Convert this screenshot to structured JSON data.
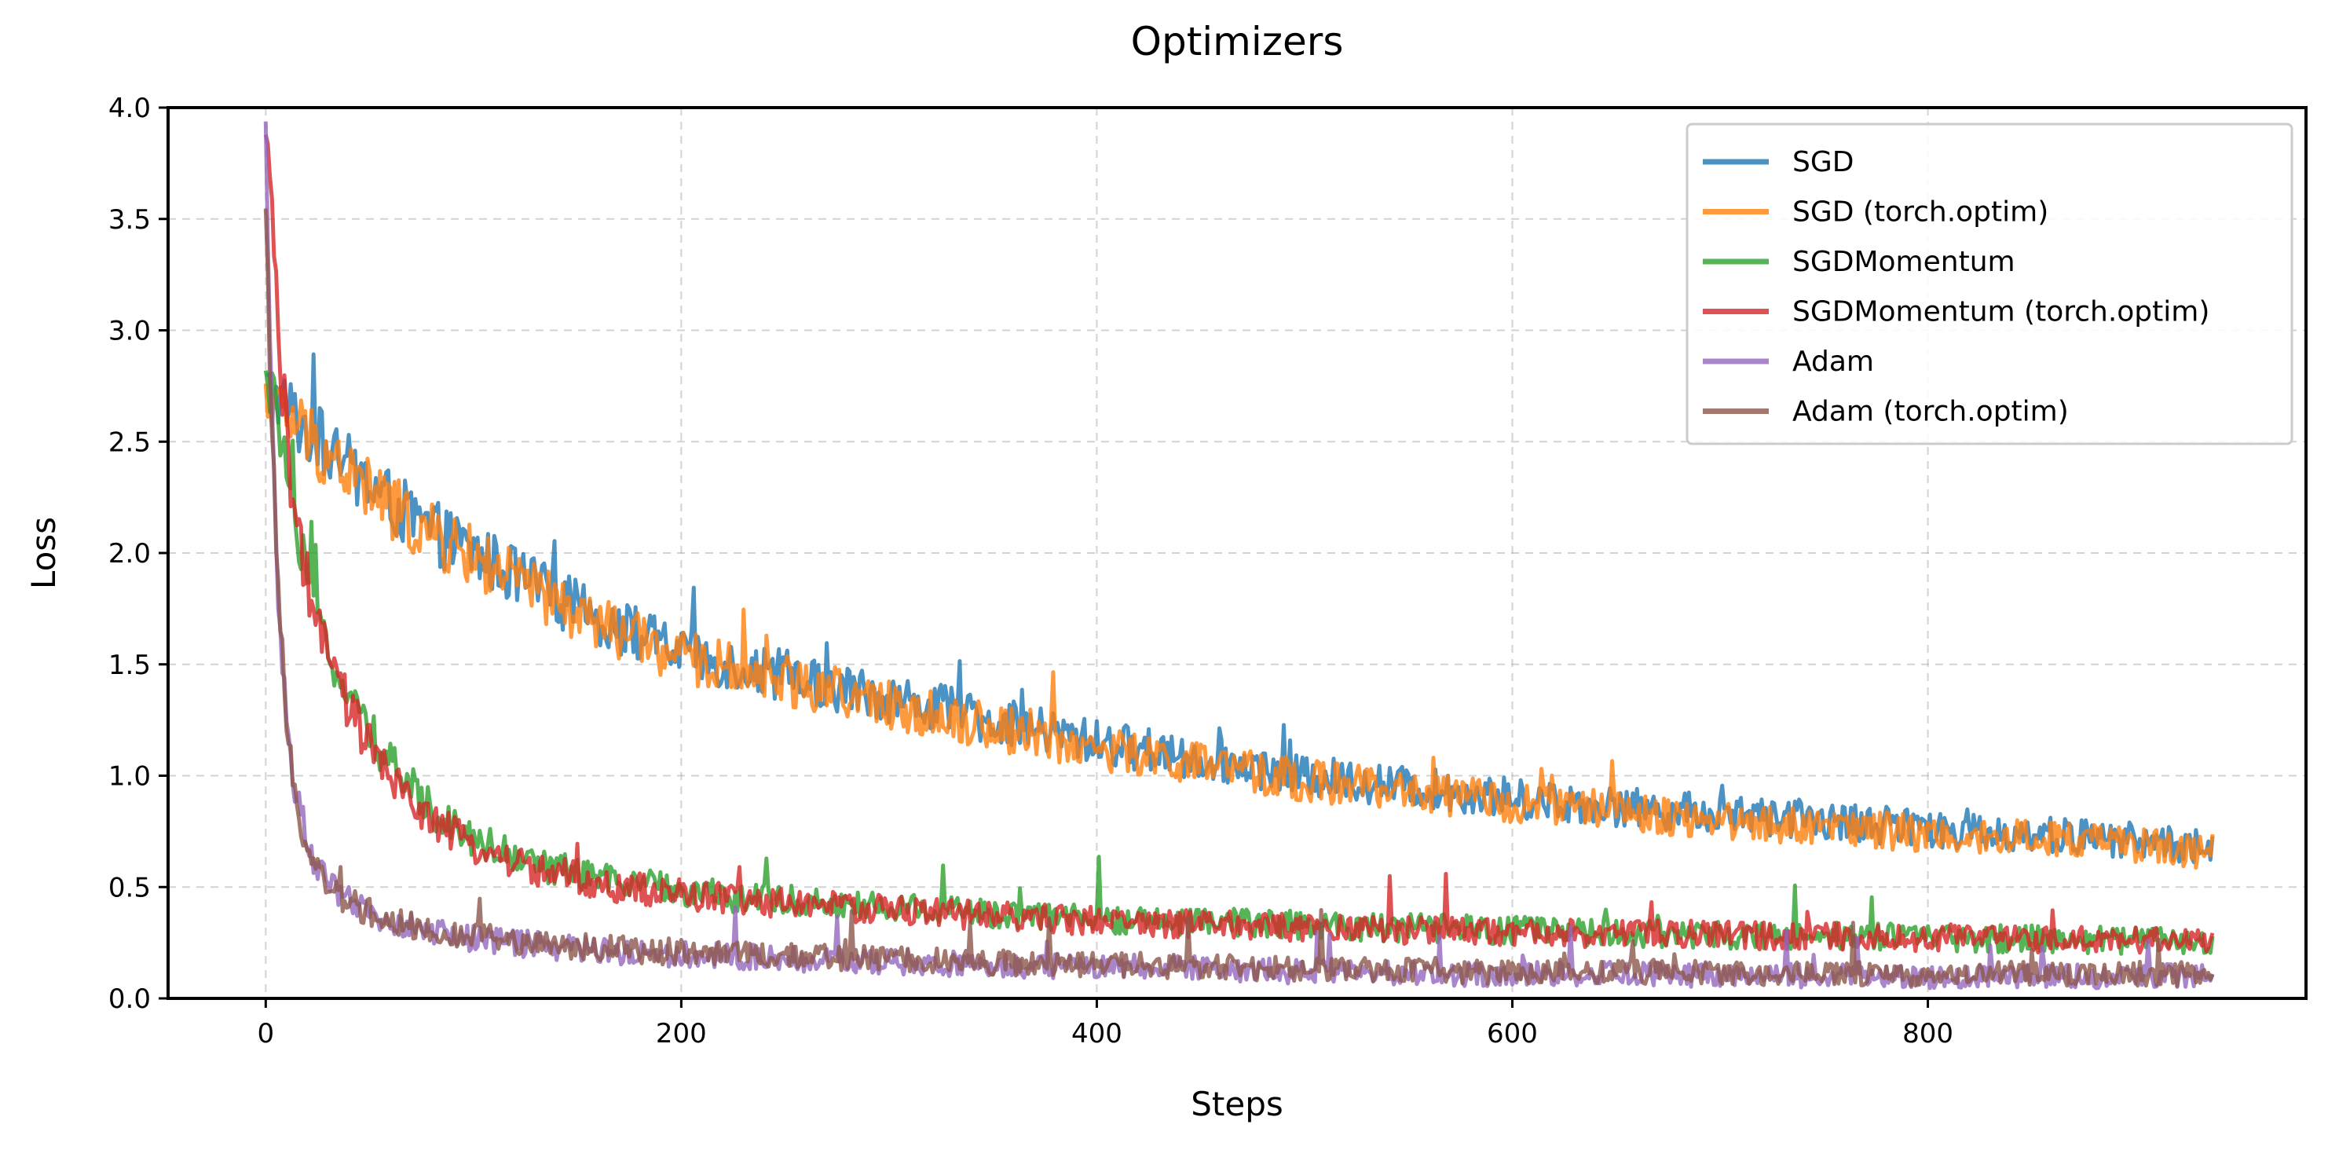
{
  "chart_data": {
    "type": "line",
    "title": "Optimizers",
    "xlabel": "Steps",
    "ylabel": "Loss",
    "xlim": [
      -47,
      982
    ],
    "ylim": [
      0.0,
      4.0
    ],
    "xticks": [
      0,
      200,
      400,
      600,
      800
    ],
    "xtick_labels": [
      "0",
      "200",
      "400",
      "600",
      "800"
    ],
    "yticks": [
      0.0,
      0.5,
      1.0,
      1.5,
      2.0,
      2.5,
      3.0,
      3.5,
      4.0
    ],
    "ytick_labels": [
      "0.0",
      "0.5",
      "1.0",
      "1.5",
      "2.0",
      "2.5",
      "3.0",
      "3.5",
      "4.0"
    ],
    "grid": true,
    "legend_position": "top-right",
    "x_range": [
      0,
      937
    ],
    "series": [
      {
        "name": "SGD",
        "color": "#1f77b4",
        "x": [
          0,
          10,
          25,
          50,
          75,
          100,
          150,
          200,
          250,
          300,
          350,
          400,
          450,
          500,
          550,
          600,
          650,
          700,
          750,
          800,
          850,
          900,
          937
        ],
        "y": [
          2.75,
          2.65,
          2.5,
          2.3,
          2.12,
          2.0,
          1.75,
          1.55,
          1.45,
          1.35,
          1.25,
          1.15,
          1.08,
          1.0,
          0.95,
          0.9,
          0.86,
          0.83,
          0.8,
          0.76,
          0.74,
          0.71,
          0.68
        ]
      },
      {
        "name": "SGD (torch.optim)",
        "color": "#ff7f0e",
        "x": [
          0,
          10,
          25,
          50,
          75,
          100,
          150,
          200,
          250,
          300,
          350,
          400,
          450,
          500,
          550,
          600,
          650,
          700,
          750,
          800,
          850,
          900,
          937
        ],
        "y": [
          2.7,
          2.62,
          2.48,
          2.28,
          2.1,
          1.98,
          1.72,
          1.53,
          1.43,
          1.32,
          1.22,
          1.12,
          1.05,
          0.98,
          0.93,
          0.88,
          0.84,
          0.8,
          0.77,
          0.74,
          0.72,
          0.69,
          0.66
        ]
      },
      {
        "name": "SGDMomentum",
        "color": "#2ca02c",
        "x": [
          0,
          3,
          8,
          15,
          25,
          40,
          60,
          80,
          100,
          130,
          170,
          220,
          280,
          350,
          420,
          500,
          580,
          660,
          740,
          820,
          900,
          937
        ],
        "y": [
          2.75,
          2.72,
          2.5,
          2.05,
          1.7,
          1.35,
          1.05,
          0.85,
          0.72,
          0.6,
          0.52,
          0.46,
          0.42,
          0.38,
          0.35,
          0.33,
          0.31,
          0.29,
          0.28,
          0.27,
          0.26,
          0.26
        ]
      },
      {
        "name": "SGDMomentum (torch.optim)",
        "color": "#d62728",
        "x": [
          0,
          3,
          8,
          15,
          25,
          40,
          60,
          80,
          100,
          130,
          170,
          220,
          280,
          350,
          420,
          500,
          580,
          660,
          740,
          820,
          900,
          937
        ],
        "y": [
          3.8,
          3.55,
          2.7,
          2.1,
          1.65,
          1.3,
          0.98,
          0.8,
          0.68,
          0.58,
          0.5,
          0.45,
          0.41,
          0.37,
          0.34,
          0.32,
          0.3,
          0.29,
          0.28,
          0.27,
          0.26,
          0.26
        ]
      },
      {
        "name": "Adam",
        "color": "#9467bd",
        "x": [
          0,
          2,
          5,
          10,
          15,
          20,
          30,
          45,
          60,
          80,
          100,
          130,
          170,
          220,
          280,
          350,
          420,
          500,
          580,
          660,
          740,
          820,
          900,
          937
        ],
        "y": [
          3.85,
          3.0,
          2.0,
          1.25,
          0.9,
          0.7,
          0.5,
          0.4,
          0.34,
          0.3,
          0.27,
          0.24,
          0.21,
          0.19,
          0.17,
          0.15,
          0.14,
          0.12,
          0.11,
          0.11,
          0.1,
          0.1,
          0.1,
          0.1
        ]
      },
      {
        "name": "Adam (torch.optim)",
        "color": "#8c564b",
        "x": [
          0,
          2,
          5,
          10,
          15,
          20,
          30,
          45,
          60,
          80,
          100,
          130,
          170,
          220,
          280,
          350,
          420,
          500,
          580,
          660,
          740,
          820,
          900,
          937
        ],
        "y": [
          3.45,
          2.9,
          1.95,
          1.2,
          0.88,
          0.68,
          0.5,
          0.41,
          0.35,
          0.31,
          0.28,
          0.25,
          0.22,
          0.2,
          0.18,
          0.16,
          0.15,
          0.13,
          0.12,
          0.12,
          0.11,
          0.11,
          0.11,
          0.11
        ]
      }
    ]
  }
}
